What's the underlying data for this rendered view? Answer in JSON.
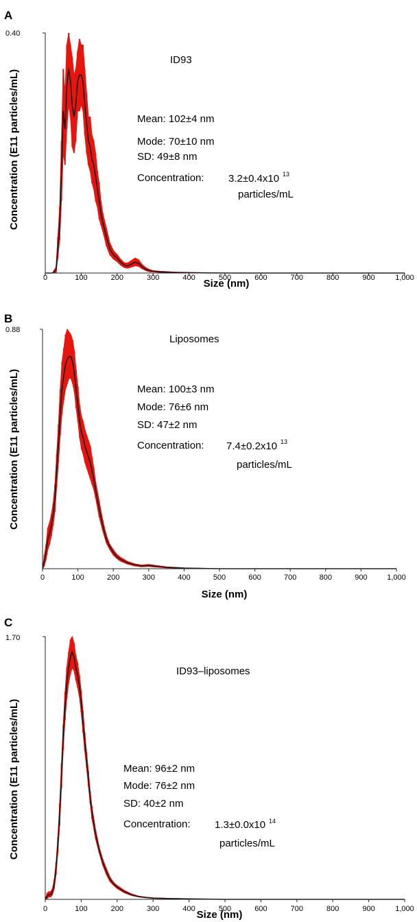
{
  "chart_data": [
    {
      "type": "line",
      "panel": "A",
      "sample": "ID93",
      "ymax_label": "0.40",
      "ylim": [
        0,
        0.4
      ],
      "xlim": [
        0,
        1000
      ],
      "xticks": [
        "0",
        "100",
        "200",
        "300",
        "400",
        "500",
        "600",
        "700",
        "800",
        "900",
        "1,000"
      ],
      "xlabel": "Size (nm)",
      "ylabel": "Concentration (E11 particles/mL)",
      "stats": {
        "mean": "Mean: 102±4 nm",
        "mode": "Mode: 70±10 nm",
        "sd": "SD: 49±8 nm",
        "conc_label": "Concentration:",
        "conc_value": "3.2±0.4x10",
        "conc_exp": "13",
        "conc_unit": "particles/mL"
      },
      "colors": {
        "mean_line": "#1a1a1a",
        "error_band": "#e8140e"
      },
      "series": [
        {
          "role": "mean",
          "x": [
            0,
            20,
            30,
            35,
            40,
            45,
            50,
            55,
            60,
            65,
            70,
            75,
            80,
            85,
            90,
            95,
            100,
            105,
            110,
            115,
            120,
            125,
            130,
            135,
            140,
            145,
            150,
            155,
            160,
            170,
            180,
            190,
            200,
            210,
            220,
            230,
            240,
            250,
            260,
            270,
            280,
            290,
            300,
            320,
            350,
            400,
            500,
            600,
            700,
            800,
            900,
            1000
          ],
          "y": [
            0,
            0,
            0.005,
            0.04,
            0.08,
            0.17,
            0.27,
            0.24,
            0.31,
            0.34,
            0.32,
            0.28,
            0.26,
            0.28,
            0.32,
            0.33,
            0.33,
            0.32,
            0.28,
            0.25,
            0.22,
            0.21,
            0.19,
            0.18,
            0.16,
            0.14,
            0.12,
            0.1,
            0.085,
            0.06,
            0.04,
            0.03,
            0.025,
            0.018,
            0.013,
            0.012,
            0.015,
            0.018,
            0.016,
            0.01,
            0.006,
            0.004,
            0.003,
            0.002,
            0.001,
            0.0005,
            0,
            0,
            0,
            0,
            0,
            0
          ]
        },
        {
          "role": "upper",
          "x": [
            0,
            20,
            30,
            35,
            40,
            45,
            50,
            55,
            60,
            65,
            70,
            75,
            80,
            85,
            90,
            95,
            100,
            105,
            110,
            115,
            120,
            125,
            130,
            135,
            140,
            145,
            150,
            155,
            160,
            170,
            180,
            190,
            200,
            210,
            220,
            230,
            240,
            250,
            260,
            270,
            280,
            290,
            300,
            320,
            350,
            400,
            500,
            600,
            700,
            800,
            900,
            1000
          ],
          "y": [
            0,
            0,
            0.01,
            0.06,
            0.11,
            0.22,
            0.34,
            0.3,
            0.38,
            0.4,
            0.38,
            0.36,
            0.33,
            0.34,
            0.37,
            0.39,
            0.38,
            0.38,
            0.34,
            0.3,
            0.26,
            0.26,
            0.23,
            0.22,
            0.2,
            0.17,
            0.15,
            0.12,
            0.1,
            0.075,
            0.05,
            0.037,
            0.031,
            0.023,
            0.017,
            0.017,
            0.021,
            0.025,
            0.022,
            0.014,
            0.009,
            0.006,
            0.004,
            0.003,
            0.002,
            0.001,
            0,
            0,
            0,
            0,
            0,
            0
          ]
        },
        {
          "role": "lower",
          "x": [
            0,
            20,
            30,
            35,
            40,
            45,
            50,
            55,
            60,
            65,
            70,
            75,
            80,
            85,
            90,
            95,
            100,
            105,
            110,
            115,
            120,
            125,
            130,
            135,
            140,
            145,
            150,
            155,
            160,
            170,
            180,
            190,
            200,
            210,
            220,
            230,
            240,
            250,
            260,
            270,
            280,
            290,
            300,
            320,
            350,
            400,
            500,
            600,
            700,
            800,
            900,
            1000
          ],
          "y": [
            0,
            0,
            0,
            0.025,
            0.055,
            0.12,
            0.2,
            0.18,
            0.24,
            0.28,
            0.26,
            0.21,
            0.2,
            0.22,
            0.27,
            0.27,
            0.28,
            0.27,
            0.23,
            0.2,
            0.18,
            0.17,
            0.15,
            0.14,
            0.12,
            0.11,
            0.09,
            0.08,
            0.07,
            0.045,
            0.03,
            0.023,
            0.019,
            0.013,
            0.009,
            0.008,
            0.01,
            0.012,
            0.011,
            0.007,
            0.004,
            0.002,
            0.002,
            0.001,
            0,
            0,
            0,
            0,
            0,
            0,
            0,
            0
          ]
        }
      ]
    },
    {
      "type": "line",
      "panel": "B",
      "sample": "Liposomes",
      "ymax_label": "0.88",
      "ylim": [
        0,
        0.88
      ],
      "xlim": [
        0,
        1000
      ],
      "xticks": [
        "0",
        "100",
        "200",
        "300",
        "400",
        "500",
        "600",
        "700",
        "800",
        "900",
        "1,000"
      ],
      "xlabel": "Size (nm)",
      "ylabel": "Concentration (E11 particles/mL)",
      "stats": {
        "mean": "Mean: 100±3 nm",
        "mode": "Mode: 76±6 nm",
        "sd": "SD: 47±2 nm",
        "conc_label": "Concentration:",
        "conc_value": "7.4±0.2x10",
        "conc_exp": "13",
        "conc_unit": "particles/mL"
      },
      "colors": {
        "mean_line": "#1a1a1a",
        "error_band": "#e8140e"
      },
      "series": [
        {
          "role": "mean",
          "x": [
            0,
            5,
            10,
            15,
            20,
            25,
            30,
            35,
            40,
            45,
            50,
            55,
            60,
            65,
            70,
            75,
            80,
            85,
            90,
            95,
            100,
            105,
            110,
            115,
            120,
            125,
            130,
            135,
            140,
            145,
            150,
            160,
            170,
            180,
            190,
            200,
            210,
            220,
            240,
            260,
            280,
            300,
            320,
            350,
            400,
            500,
            600,
            700,
            800,
            900,
            1000
          ],
          "y": [
            0,
            0.03,
            0.06,
            0.11,
            0.13,
            0.16,
            0.2,
            0.26,
            0.36,
            0.46,
            0.57,
            0.66,
            0.71,
            0.75,
            0.77,
            0.78,
            0.78,
            0.76,
            0.72,
            0.66,
            0.6,
            0.54,
            0.5,
            0.48,
            0.45,
            0.43,
            0.41,
            0.39,
            0.36,
            0.33,
            0.29,
            0.22,
            0.16,
            0.11,
            0.08,
            0.06,
            0.045,
            0.035,
            0.022,
            0.014,
            0.01,
            0.012,
            0.009,
            0.005,
            0.002,
            0,
            0,
            0,
            0,
            0,
            0
          ]
        },
        {
          "role": "upper",
          "x": [
            0,
            5,
            10,
            15,
            20,
            25,
            30,
            35,
            40,
            45,
            50,
            55,
            60,
            65,
            70,
            75,
            80,
            85,
            90,
            95,
            100,
            105,
            110,
            115,
            120,
            125,
            130,
            135,
            140,
            145,
            150,
            160,
            170,
            180,
            190,
            200,
            210,
            220,
            240,
            260,
            280,
            300,
            320,
            350,
            400,
            500,
            600,
            700,
            800,
            900,
            1000
          ],
          "y": [
            0,
            0.05,
            0.09,
            0.15,
            0.17,
            0.2,
            0.24,
            0.31,
            0.42,
            0.53,
            0.66,
            0.76,
            0.81,
            0.86,
            0.88,
            0.87,
            0.86,
            0.84,
            0.8,
            0.73,
            0.67,
            0.6,
            0.56,
            0.54,
            0.51,
            0.49,
            0.47,
            0.45,
            0.41,
            0.37,
            0.32,
            0.25,
            0.18,
            0.125,
            0.09,
            0.07,
            0.053,
            0.042,
            0.027,
            0.018,
            0.013,
            0.016,
            0.012,
            0.007,
            0.003,
            0,
            0,
            0,
            0,
            0,
            0
          ]
        },
        {
          "role": "lower",
          "x": [
            0,
            5,
            10,
            15,
            20,
            25,
            30,
            35,
            40,
            45,
            50,
            55,
            60,
            65,
            70,
            75,
            80,
            85,
            90,
            95,
            100,
            105,
            110,
            115,
            120,
            125,
            130,
            135,
            140,
            145,
            150,
            160,
            170,
            180,
            190,
            200,
            210,
            220,
            240,
            260,
            280,
            300,
            320,
            350,
            400,
            500,
            600,
            700,
            800,
            900,
            1000
          ],
          "y": [
            0,
            0.01,
            0.035,
            0.07,
            0.09,
            0.12,
            0.16,
            0.21,
            0.3,
            0.39,
            0.49,
            0.57,
            0.62,
            0.66,
            0.68,
            0.7,
            0.7,
            0.68,
            0.65,
            0.59,
            0.54,
            0.48,
            0.44,
            0.42,
            0.39,
            0.37,
            0.35,
            0.33,
            0.31,
            0.29,
            0.26,
            0.19,
            0.14,
            0.095,
            0.07,
            0.05,
            0.037,
            0.028,
            0.017,
            0.01,
            0.007,
            0.008,
            0.006,
            0.003,
            0.001,
            0,
            0,
            0,
            0,
            0,
            0
          ]
        }
      ]
    },
    {
      "type": "line",
      "panel": "C",
      "sample": "ID93–liposomes",
      "ymax_label": "1.70",
      "ylim": [
        0,
        1.7
      ],
      "xlim": [
        0,
        1000
      ],
      "xticks": [
        "0",
        "100",
        "200",
        "300",
        "400",
        "500",
        "600",
        "700",
        "800",
        "900",
        "1,000"
      ],
      "xlabel": "Size (nm)",
      "ylabel": "Concentration (E11 particles/mL)",
      "stats": {
        "mean": "Mean: 96±2 nm",
        "mode": "Mode: 76±2 nm",
        "sd": "SD: 40±2 nm",
        "conc_label": "Concentration:",
        "conc_value": "1.3±0.0x10",
        "conc_exp": "14",
        "conc_unit": "particles/mL"
      },
      "colors": {
        "mean_line": "#1a1a1a",
        "error_band": "#e8140e"
      },
      "series": [
        {
          "role": "mean",
          "x": [
            0,
            5,
            10,
            15,
            20,
            25,
            30,
            35,
            40,
            45,
            50,
            55,
            60,
            65,
            70,
            75,
            80,
            85,
            90,
            95,
            100,
            105,
            110,
            115,
            120,
            125,
            130,
            140,
            150,
            160,
            170,
            180,
            190,
            200,
            220,
            240,
            260,
            280,
            300,
            350,
            400,
            500,
            600,
            700,
            800,
            900,
            1000
          ],
          "y": [
            0,
            0.02,
            0.03,
            0.03,
            0.05,
            0.1,
            0.2,
            0.35,
            0.55,
            0.8,
            1.05,
            1.25,
            1.4,
            1.5,
            1.57,
            1.6,
            1.57,
            1.5,
            1.45,
            1.38,
            1.28,
            1.15,
            1.02,
            0.9,
            0.78,
            0.66,
            0.56,
            0.42,
            0.32,
            0.24,
            0.18,
            0.13,
            0.1,
            0.08,
            0.05,
            0.03,
            0.018,
            0.012,
            0.008,
            0.005,
            0.003,
            0,
            0,
            0,
            0,
            0,
            0
          ]
        },
        {
          "role": "upper",
          "x": [
            0,
            5,
            10,
            15,
            20,
            25,
            30,
            35,
            40,
            45,
            50,
            55,
            60,
            65,
            70,
            75,
            80,
            85,
            90,
            95,
            100,
            105,
            110,
            115,
            120,
            125,
            130,
            140,
            150,
            160,
            170,
            180,
            190,
            200,
            220,
            240,
            260,
            280,
            300,
            350,
            400,
            500,
            600,
            700,
            800,
            900,
            1000
          ],
          "y": [
            0,
            0.04,
            0.05,
            0.05,
            0.07,
            0.13,
            0.24,
            0.4,
            0.62,
            0.88,
            1.13,
            1.34,
            1.5,
            1.6,
            1.68,
            1.7,
            1.66,
            1.58,
            1.53,
            1.45,
            1.35,
            1.22,
            1.08,
            0.95,
            0.83,
            0.7,
            0.6,
            0.45,
            0.34,
            0.26,
            0.2,
            0.145,
            0.11,
            0.09,
            0.058,
            0.035,
            0.021,
            0.014,
            0.01,
            0.006,
            0.004,
            0,
            0,
            0,
            0,
            0,
            0
          ]
        },
        {
          "role": "lower",
          "x": [
            0,
            5,
            10,
            15,
            20,
            25,
            30,
            35,
            40,
            45,
            50,
            55,
            60,
            65,
            70,
            75,
            80,
            85,
            90,
            95,
            100,
            105,
            110,
            115,
            120,
            125,
            130,
            140,
            150,
            160,
            170,
            180,
            190,
            200,
            220,
            240,
            260,
            280,
            300,
            350,
            400,
            500,
            600,
            700,
            800,
            900,
            1000
          ],
          "y": [
            0,
            0.005,
            0.015,
            0.015,
            0.03,
            0.07,
            0.16,
            0.3,
            0.48,
            0.72,
            0.97,
            1.16,
            1.3,
            1.4,
            1.46,
            1.5,
            1.48,
            1.42,
            1.37,
            1.31,
            1.21,
            1.08,
            0.96,
            0.85,
            0.73,
            0.62,
            0.52,
            0.39,
            0.3,
            0.22,
            0.16,
            0.115,
            0.09,
            0.07,
            0.042,
            0.025,
            0.015,
            0.01,
            0.006,
            0.004,
            0.002,
            0,
            0,
            0,
            0,
            0,
            0
          ]
        }
      ]
    }
  ]
}
